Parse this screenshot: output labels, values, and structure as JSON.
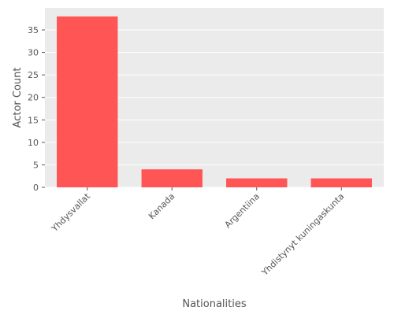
{
  "chart_data": {
    "type": "bar",
    "title": "",
    "xlabel": "Nationalities",
    "ylabel": "Actor Count",
    "categories": [
      "Yhdysvallat",
      "Kanada",
      "Argentiina",
      "Yhdistynyt kuningaskunta"
    ],
    "values": [
      38,
      4,
      2,
      2
    ],
    "ylim": [
      0,
      39.9
    ],
    "yticks": [
      0,
      5,
      10,
      15,
      20,
      25,
      30,
      35
    ],
    "grid": true,
    "legend": "none",
    "colors": {
      "bar": "#ff5555",
      "plot_background": "#ebebeb",
      "grid": "#ffffff",
      "tick_text": "#555555",
      "axis_label": "#555555"
    }
  }
}
